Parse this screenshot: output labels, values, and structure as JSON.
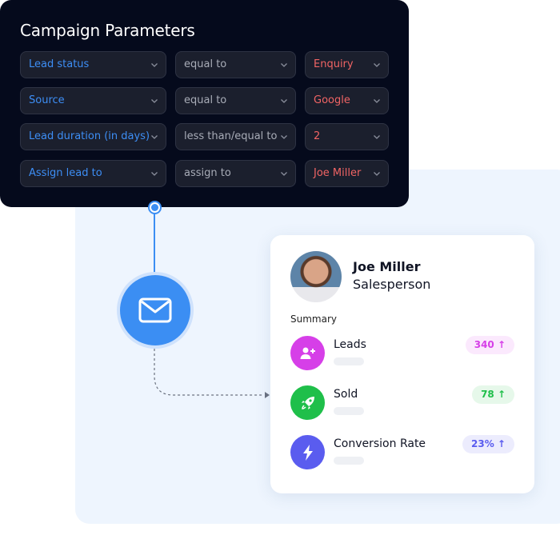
{
  "campaign": {
    "title": "Campaign Parameters",
    "rows": [
      {
        "field": "Lead status",
        "operator": "equal to",
        "value": "Enquiry"
      },
      {
        "field": "Source",
        "operator": "equal to",
        "value": "Google"
      },
      {
        "field": "Lead duration (in days)",
        "operator": "less than/equal to",
        "value": "2"
      },
      {
        "field": "Assign lead to",
        "operator": "assign to",
        "value": "Joe Miller"
      }
    ]
  },
  "connector": {
    "icon": "mail-icon"
  },
  "profile": {
    "name": "Joe Miller",
    "role": "Salesperson",
    "summary_label": "Summary",
    "stats": [
      {
        "label": "Leads",
        "value": "340 ↑",
        "icon": "user-plus-icon",
        "color": "#d63fe8",
        "badge_bg": "#fbe9fd"
      },
      {
        "label": "Sold",
        "value": "78 ↑",
        "icon": "rocket-icon",
        "color": "#1fbf4a",
        "badge_bg": "#e6f8ea"
      },
      {
        "label": "Conversion Rate",
        "value": "23% ↑",
        "icon": "lightning-icon",
        "color": "#5a5cef",
        "badge_bg": "#ececfd"
      }
    ]
  }
}
